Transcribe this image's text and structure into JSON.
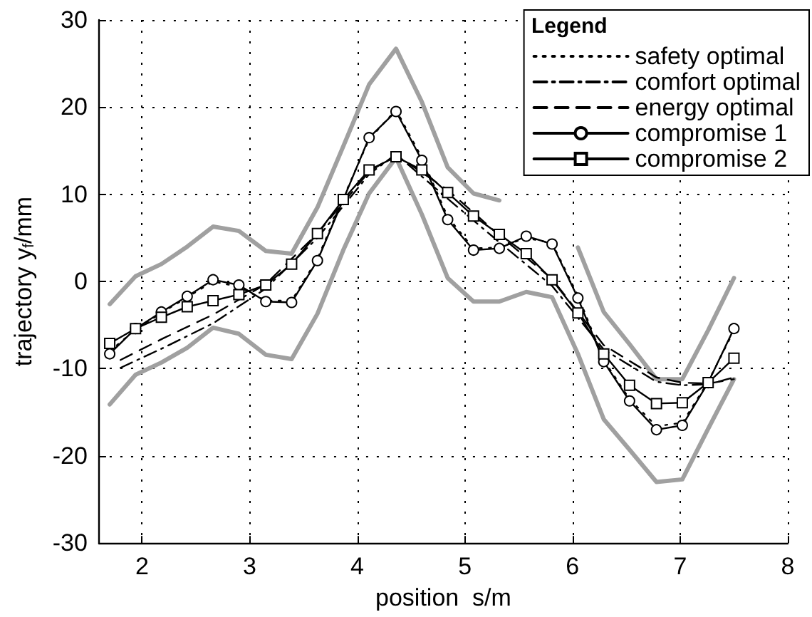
{
  "chart_data": {
    "type": "line",
    "xlabel": "position  s/m",
    "ylabel": "trajectory y$_{f}$/mm",
    "legend_title": "Legend",
    "legend": "top right",
    "grid": true,
    "xlim": [
      1.6,
      8
    ],
    "xticks": [
      2,
      3,
      4,
      5,
      6,
      7,
      8
    ],
    "ylim": [
      -30,
      30
    ],
    "yticks": [
      -30,
      -20,
      -10,
      0,
      10,
      20,
      30
    ],
    "x": [
      1.7,
      1.94,
      2.18,
      2.42,
      2.66,
      2.9,
      3.15,
      3.39,
      3.63,
      3.87,
      4.11,
      4.36,
      4.6,
      4.84,
      5.08,
      5.32,
      5.57,
      5.81,
      6.05,
      6.29,
      6.53,
      6.78,
      7.02,
      7.26,
      7.5
    ],
    "series": [
      {
        "color": "#a0a0a0",
        "marker": "none",
        "line_style": "solid",
        "values": [
          -2.6,
          0.6,
          2.0,
          4.0,
          6.3,
          5.8,
          3.5,
          3.2,
          8.5,
          15.5,
          22.6,
          26.7,
          20.6,
          13.1,
          10.1,
          9.3,
          null,
          null,
          3.9,
          -3.5,
          -7.2,
          -11.2,
          -11.2,
          -5.6,
          0.4
        ]
      },
      {
        "color": "#a0a0a0",
        "marker": "none",
        "line_style": "solid",
        "values": [
          -14.1,
          -10.7,
          -9.3,
          -7.6,
          -5.3,
          -6.0,
          -8.4,
          -8.9,
          -3.7,
          3.6,
          10.1,
          14.2,
          7.7,
          0.4,
          -2.3,
          -2.3,
          -1.2,
          -1.8,
          -8.3,
          -15.8,
          -19.3,
          -23.0,
          -22.7,
          -16.9,
          -11.2
        ]
      },
      {
        "name": "safety optimal",
        "color": "#000000",
        "marker": "none",
        "line_style": "dotted",
        "values": [
          -8.0,
          -5.5,
          -3.6,
          -1.8,
          0.0,
          -0.6,
          -2.2,
          -2.2,
          2.6,
          9.6,
          16.3,
          19.7,
          14.2,
          7.4,
          3.8,
          3.9,
          5.0,
          4.4,
          -1.6,
          -9.0,
          -13.5,
          -16.6,
          -16.2,
          -11.5,
          -5.6
        ]
      },
      {
        "name": "comfort optimal",
        "color": "#000000",
        "marker": "none",
        "line_style": "dashdot",
        "x": [
          1.8,
          2.2,
          2.66,
          3.15,
          3.63,
          4.11,
          4.36,
          4.84,
          5.32,
          5.81,
          6.29,
          6.78,
          7.02,
          7.26,
          7.5
        ],
        "values": [
          -9.9,
          -7.6,
          -4.8,
          -0.8,
          5.0,
          12.3,
          14.6,
          9.5,
          4.5,
          -0.5,
          -7.8,
          -11.5,
          -11.9,
          -11.8,
          -11.0
        ]
      },
      {
        "name": "energy optimal",
        "color": "#000000",
        "marker": "none",
        "line_style": "dashed",
        "x": [
          1.8,
          2.2,
          2.66,
          3.15,
          3.63,
          4.11,
          4.36,
          4.84,
          5.32,
          5.81,
          6.29,
          6.78,
          7.02,
          7.26,
          7.5
        ],
        "values": [
          -9.0,
          -6.5,
          -3.8,
          -0.3,
          5.5,
          12.6,
          14.5,
          10.5,
          5.3,
          0.3,
          -7.3,
          -11.0,
          -11.6,
          -11.7,
          -11.2
        ]
      },
      {
        "name": "compromise 1",
        "color": "#000000",
        "marker": "circle",
        "line_style": "solid",
        "values": [
          -8.3,
          -5.4,
          -3.5,
          -1.7,
          0.2,
          -0.4,
          -2.3,
          -2.4,
          2.4,
          9.4,
          16.5,
          19.5,
          13.9,
          7.1,
          3.6,
          3.8,
          5.2,
          4.3,
          -1.9,
          -9.2,
          -13.7,
          -17.0,
          -16.5,
          -11.6,
          -5.4
        ]
      },
      {
        "name": "compromise 2",
        "color": "#000000",
        "marker": "square",
        "line_style": "solid",
        "values": [
          -7.1,
          -5.4,
          -4.1,
          -2.9,
          -2.2,
          -1.5,
          -0.4,
          2.0,
          5.5,
          9.4,
          12.8,
          14.3,
          12.8,
          10.2,
          7.5,
          5.4,
          3.2,
          0.2,
          -3.6,
          -8.3,
          -11.9,
          -14.0,
          -13.9,
          -11.6,
          -8.8
        ]
      }
    ]
  }
}
